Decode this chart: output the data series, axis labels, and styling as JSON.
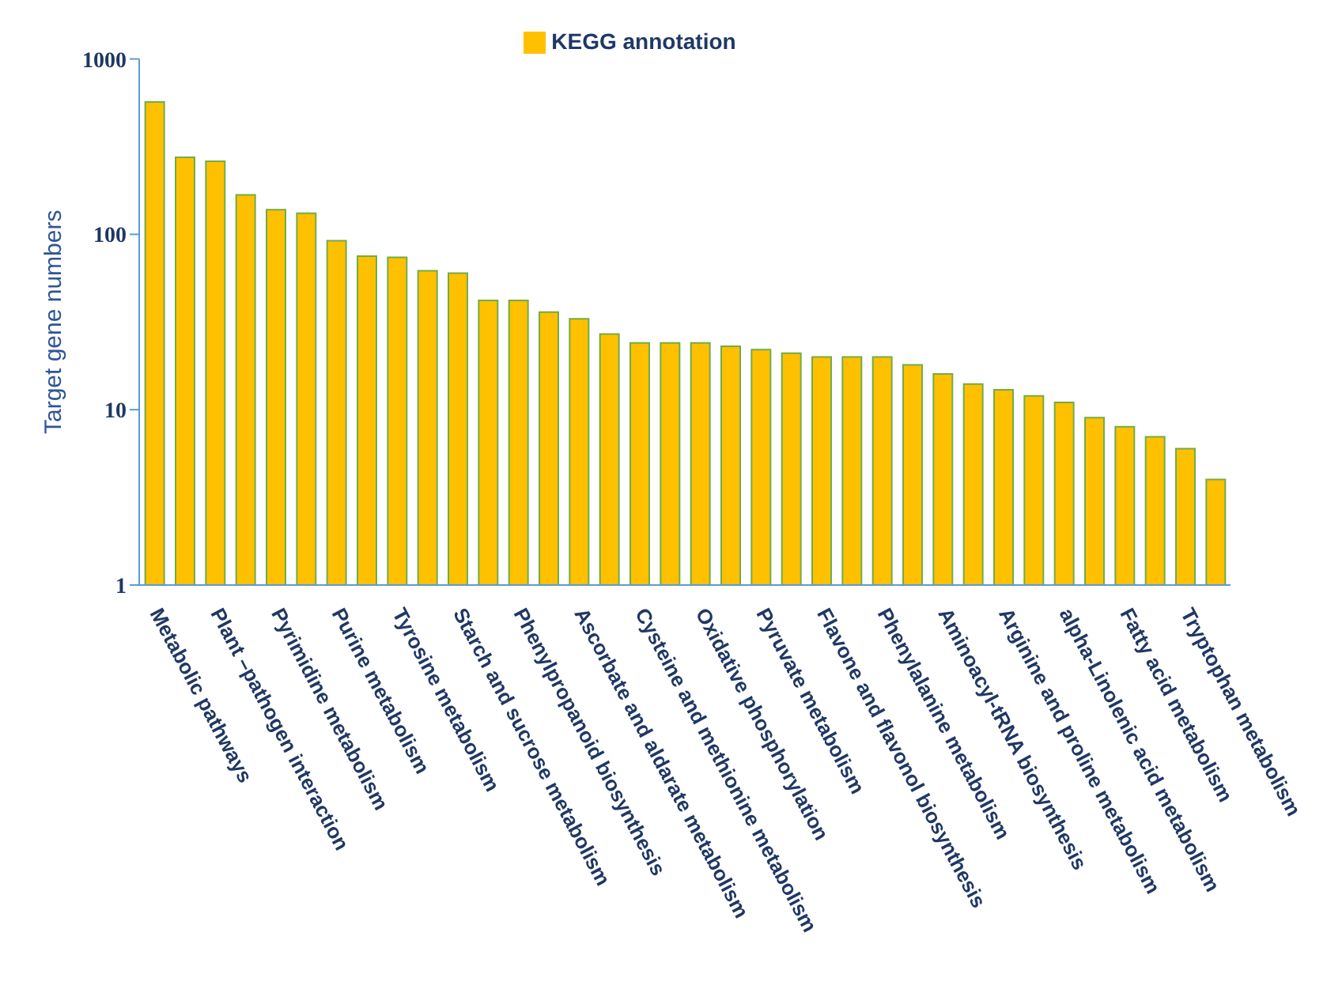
{
  "chart_data": {
    "type": "bar",
    "ylabel": "Target gene numbers",
    "log": "y",
    "ylim": [
      1,
      1000
    ],
    "yticks": [
      1,
      10,
      100,
      1000
    ],
    "legend": "top",
    "categories": [
      "Metabolic pathways",
      null,
      "Plant –pathogen interaction",
      null,
      "Pyrimidine metabolism",
      null,
      "Purine metabolism",
      null,
      "Tyrosine metabolism",
      null,
      "Starch and sucrose metabolism",
      null,
      "Phenylpropanoid biosynthesis",
      null,
      "Ascorbate and aldarate metabolism",
      null,
      "Cysteine and methionine metabolism",
      null,
      "Oxidative phosphorylation",
      null,
      "Pyruvate metabolism",
      null,
      "Flavone and flavonol biosynthesis",
      null,
      "Phenylalanine metabolism",
      null,
      "Aminoacyl-tRNA biosynthesis",
      null,
      "Arginine and proline metabolism",
      null,
      "alpha-Linolenic acid metabolism",
      null,
      "Fatty acid metabolism",
      null,
      "Tryptophan metabolism",
      null
    ],
    "series": [
      {
        "name": "KEGG annotation",
        "color": "#ffc000",
        "values": [
          568,
          275,
          261,
          168,
          138,
          132,
          92,
          75,
          74,
          62,
          60,
          42,
          42,
          36,
          33,
          27,
          24,
          24,
          24,
          23,
          22,
          21,
          20,
          20,
          20,
          18,
          16,
          14,
          13,
          12,
          11,
          9,
          8,
          7,
          6,
          4
        ]
      }
    ]
  }
}
